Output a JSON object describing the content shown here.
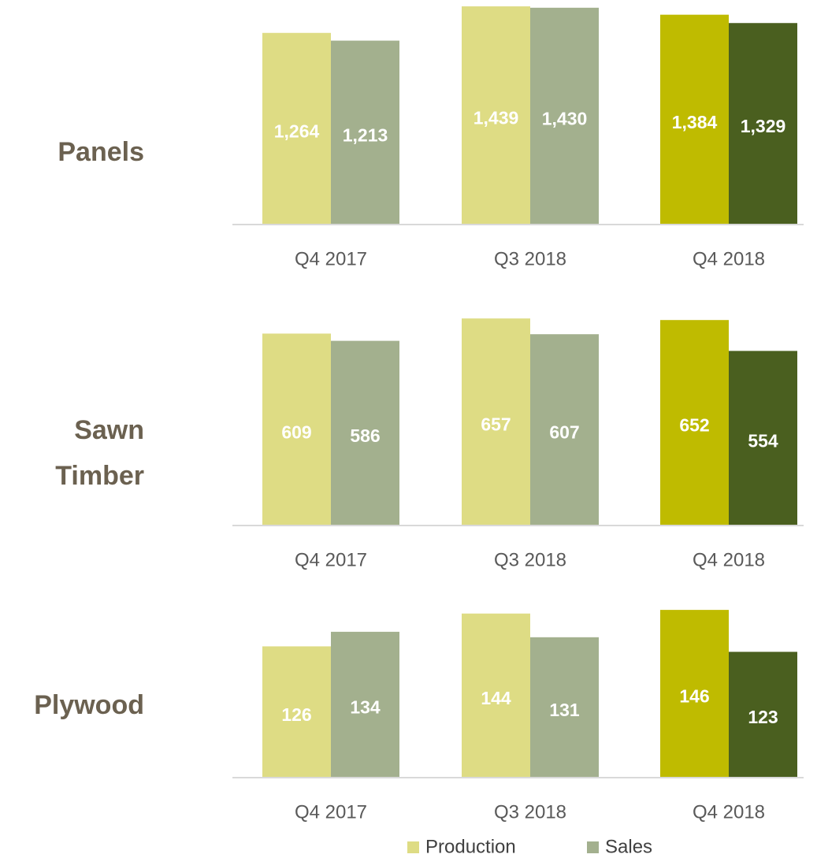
{
  "chart_data": [
    {
      "type": "bar",
      "title": "Panels",
      "categories": [
        "Q4 2017",
        "Q3 2018",
        "Q4 2018"
      ],
      "series": [
        {
          "name": "Production",
          "colors": [
            "#dedc84",
            "#dedc84",
            "#bfbb00"
          ],
          "values": [
            1264,
            1439,
            1384
          ],
          "value_labels": [
            "1,264",
            "1,439",
            "1,384"
          ]
        },
        {
          "name": "Sales",
          "colors": [
            "#a3b08e",
            "#a3b08e",
            "#4a5f1f"
          ],
          "values": [
            1213,
            1430,
            1329
          ],
          "value_labels": [
            "1,213",
            "1,430",
            "1,329"
          ]
        }
      ],
      "ylim": [
        0,
        1455
      ]
    },
    {
      "type": "bar",
      "title": "Sawn Timber",
      "categories": [
        "Q4 2017",
        "Q3 2018",
        "Q4 2018"
      ],
      "series": [
        {
          "name": "Production",
          "colors": [
            "#dedc84",
            "#dedc84",
            "#bfbb00"
          ],
          "values": [
            609,
            657,
            652
          ]
        },
        {
          "name": "Sales",
          "colors": [
            "#a3b08e",
            "#a3b08e",
            "#4a5f1f"
          ],
          "values": [
            586,
            607,
            554
          ]
        }
      ],
      "ylim": [
        0,
        700
      ]
    },
    {
      "type": "bar",
      "title": "Plywood",
      "categories": [
        "Q4 2017",
        "Q3 2018",
        "Q4 2018"
      ],
      "series": [
        {
          "name": "Production",
          "colors": [
            "#dedc84",
            "#dedc84",
            "#bfbb00"
          ],
          "values": [
            126,
            144,
            146
          ]
        },
        {
          "name": "Sales",
          "colors": [
            "#a3b08e",
            "#a3b08e",
            "#4a5f1f"
          ],
          "values": [
            134,
            131,
            123
          ]
        }
      ],
      "ylim": [
        54,
        175
      ]
    }
  ]
}
